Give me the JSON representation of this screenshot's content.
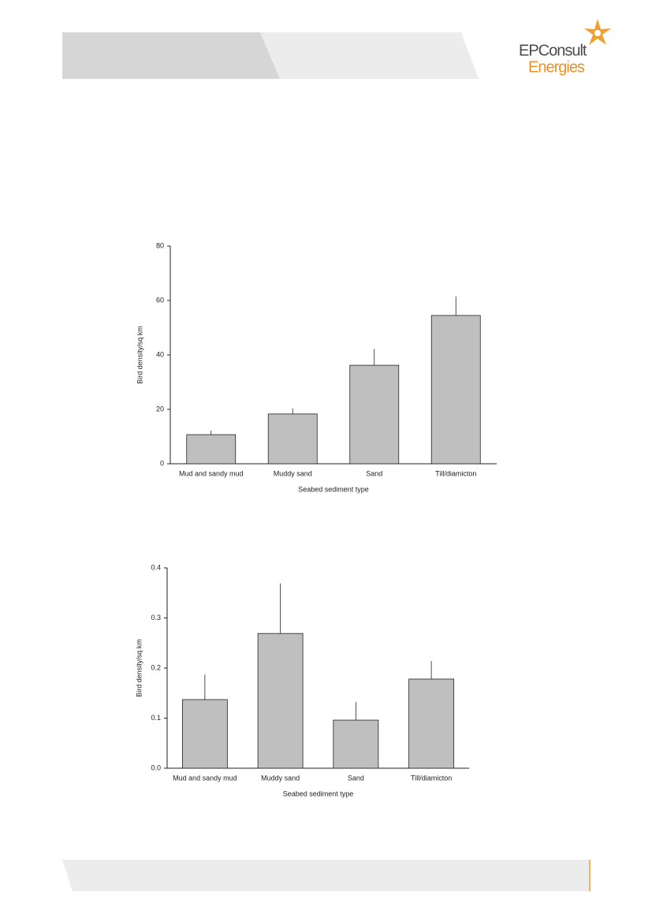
{
  "header": {
    "logo_line1": "EPConsult",
    "logo_line2": "Energies"
  },
  "chart_data": [
    {
      "type": "bar",
      "y_label": "Bird density/sq km",
      "x_label": "Seabed sediment type",
      "categories": [
        "Mud and sandy mud",
        "Muddy sand",
        "Sand",
        "Till/diamicton"
      ],
      "values": [
        10.7,
        18.3,
        36.2,
        54.5
      ],
      "errors": [
        1.5,
        2,
        6,
        7
      ],
      "color": "#bfbfbf",
      "ylim": [
        0,
        80
      ],
      "yticks": [
        0,
        20,
        40,
        60,
        80
      ]
    },
    {
      "type": "bar",
      "y_label": "Bird density/sq km",
      "x_label": "Seabed sediment type",
      "categories": [
        "Mud and sandy mud",
        "Muddy sand",
        "Sand",
        "Till/diamicton"
      ],
      "values": [
        0.137,
        0.269,
        0.096,
        0.178
      ],
      "errors": [
        0.05,
        0.1,
        0.036,
        0.036
      ],
      "color": "#bfbfbf",
      "ylim": [
        0,
        0.4
      ],
      "yticks": [
        {
          "value": 0,
          "label": "0.0"
        },
        0.1,
        0.2,
        0.3,
        0.4
      ]
    }
  ]
}
